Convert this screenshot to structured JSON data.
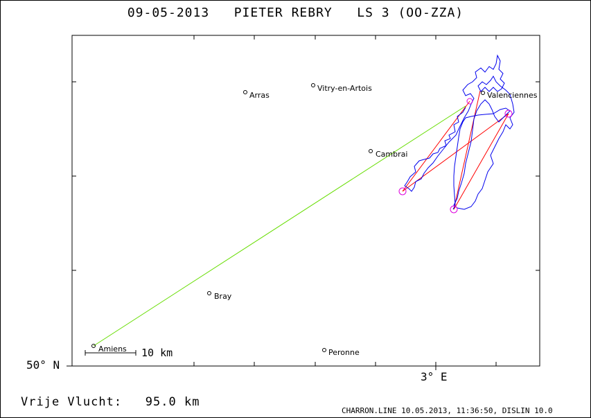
{
  "title": "09-05-2013   PIETER REBRY   LS 3 (OO-ZZA)",
  "axes": {
    "latitude_label": "50° N",
    "longitude_label": "3° E"
  },
  "scale": {
    "label": "10 km"
  },
  "stats": {
    "label": "Vrije Vlucht:",
    "value": "95.0 km"
  },
  "footer": "CHARRON.LINE 10.05.2013, 11:36:50, DISLIN 10.0",
  "places": [
    {
      "name": "Arras"
    },
    {
      "name": "Vitry-en-Artois"
    },
    {
      "name": "Valenciennes"
    },
    {
      "name": "Cambrai"
    },
    {
      "name": "Bray"
    },
    {
      "name": "Amiens"
    },
    {
      "name": "Peronne"
    }
  ],
  "colors": {
    "track": "#0000ee",
    "task": "#ff0000",
    "glide": "#66dd00",
    "turnpoint": "#dd00dd",
    "frame": "#000000"
  }
}
